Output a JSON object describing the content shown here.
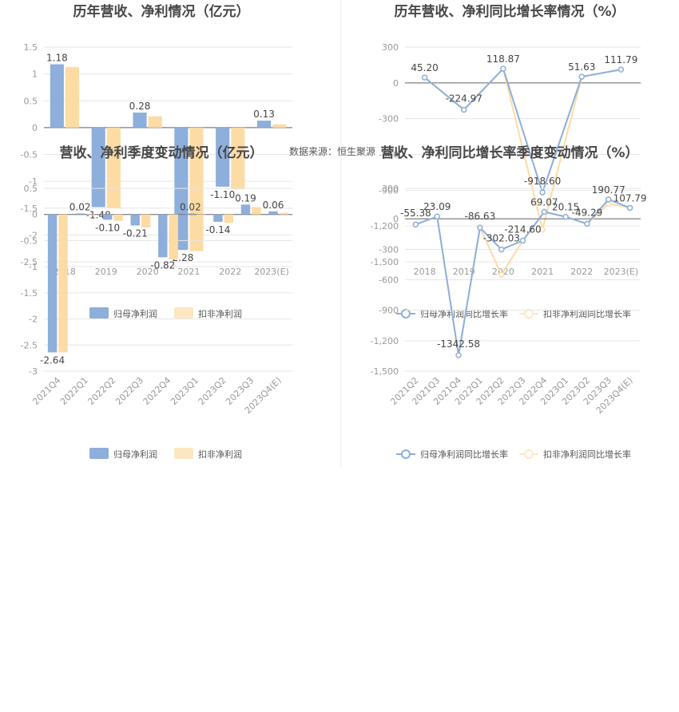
{
  "source_label": "数据来源：恒生聚源",
  "legend_bars": [
    "归母净利润",
    "扣非净利润"
  ],
  "legend_lines": [
    "归母净利润同比增长率",
    "扣非净利润同比增长率"
  ],
  "colors": {
    "primary": "#8eaedb",
    "secondary": "#fcdba5",
    "secondary_light": "#fde7c2"
  },
  "chart_data": [
    {
      "id": "annual_profit",
      "type": "bar",
      "title": "历年营收、净利情况（亿元）",
      "categories": [
        "2018",
        "2019",
        "2020",
        "2021",
        "2022",
        "2023(E)"
      ],
      "series": [
        {
          "name": "归母净利润",
          "values": [
            1.18,
            -1.48,
            0.28,
            -2.28,
            -1.1,
            0.13
          ]
        },
        {
          "name": "扣非净利润",
          "values": [
            1.13,
            -1.5,
            0.21,
            -2.3,
            -1.15,
            0.06
          ]
        }
      ],
      "data_labels": [
        "1.18",
        "-1.48",
        "0.28",
        "-2.28",
        "-1.10",
        "0.13"
      ],
      "yticks": [
        "1.5",
        "1",
        "0.5",
        "0",
        "-0.5",
        "-1",
        "-1.5",
        "-2",
        "-2.5"
      ],
      "ylim": [
        -2.5,
        1.5
      ],
      "grid": true,
      "legend": "bottom"
    },
    {
      "id": "annual_growth",
      "type": "line",
      "title": "历年营收、净利同比增长率情况（%）",
      "categories": [
        "2018",
        "2019",
        "2020",
        "2021",
        "2022",
        "2023(E)"
      ],
      "series": [
        {
          "name": "归母净利润同比增长率",
          "values": [
            45.2,
            -224.97,
            118.87,
            -918.6,
            51.63,
            111.79
          ]
        },
        {
          "name": "扣非净利润同比增长率",
          "values": [
            45.2,
            -224.97,
            118.87,
            -1230,
            51.63,
            111.79
          ]
        }
      ],
      "data_labels": [
        "45.20",
        "-224.97",
        "118.87",
        "-918.60",
        "51.63",
        "111.79"
      ],
      "yticks": [
        "300",
        "0",
        "-300",
        "-600",
        "-900",
        "-1,200",
        "-1,500"
      ],
      "ylim": [
        -1500,
        300
      ],
      "grid": true,
      "legend": "bottom"
    },
    {
      "id": "quarterly_profit",
      "type": "bar",
      "title": "营收、净利季度变动情况（亿元）",
      "categories": [
        "2021Q4",
        "2022Q1",
        "2022Q2",
        "2022Q3",
        "2022Q4",
        "2023Q1",
        "2023Q2",
        "2023Q3",
        "2023Q4(E)"
      ],
      "series": [
        {
          "name": "归母净利润",
          "values": [
            -2.64,
            0.02,
            -0.1,
            -0.21,
            -0.82,
            0.02,
            -0.14,
            0.19,
            0.06
          ]
        },
        {
          "name": "扣非净利润",
          "values": [
            -2.64,
            -0.01,
            -0.12,
            -0.25,
            -0.86,
            -0.02,
            -0.16,
            0.14,
            0.03
          ]
        }
      ],
      "data_labels": [
        "-2.64",
        "0.02",
        "-0.10",
        "-0.21",
        "-0.82",
        "0.02",
        "-0.14",
        "0.19",
        "0.06"
      ],
      "yticks": [
        "0.5",
        "0",
        "-0.5",
        "-1",
        "-1.5",
        "-2",
        "-2.5",
        "-3"
      ],
      "ylim": [
        -3,
        0.5
      ],
      "grid": true,
      "legend": "bottom"
    },
    {
      "id": "quarterly_growth",
      "type": "line",
      "title": "营收、净利同比增长率季度变动情况（%）",
      "categories": [
        "2021Q2",
        "2021Q3",
        "2021Q4",
        "2022Q1",
        "2022Q2",
        "2022Q3",
        "2022Q4",
        "2023Q1",
        "2023Q2",
        "2023Q3",
        "2023Q4(E)"
      ],
      "series": [
        {
          "name": "归母净利润同比增长率",
          "values": [
            -55.38,
            23.09,
            -1342.58,
            -86.63,
            -302.03,
            -214.6,
            69.07,
            20.15,
            -49.29,
            190.77,
            107.79
          ]
        },
        {
          "name": "扣非净利润同比增长率",
          "values": [
            -55.38,
            23.09,
            -1342.58,
            -86.63,
            -550,
            -214.6,
            69.07,
            20.15,
            -49.29,
            150,
            107.79
          ]
        }
      ],
      "data_labels": [
        "-55.38",
        "23.09",
        "-1342.58",
        "-86.63",
        "-302.03",
        "-214.60",
        "69.07",
        "20.15",
        "-49.29",
        "190.77",
        "107.79"
      ],
      "yticks": [
        "300",
        "0",
        "-300",
        "-600",
        "-900",
        "-1,200",
        "-1,500"
      ],
      "ylim": [
        -1500,
        300
      ],
      "grid": true,
      "legend": "bottom"
    }
  ]
}
